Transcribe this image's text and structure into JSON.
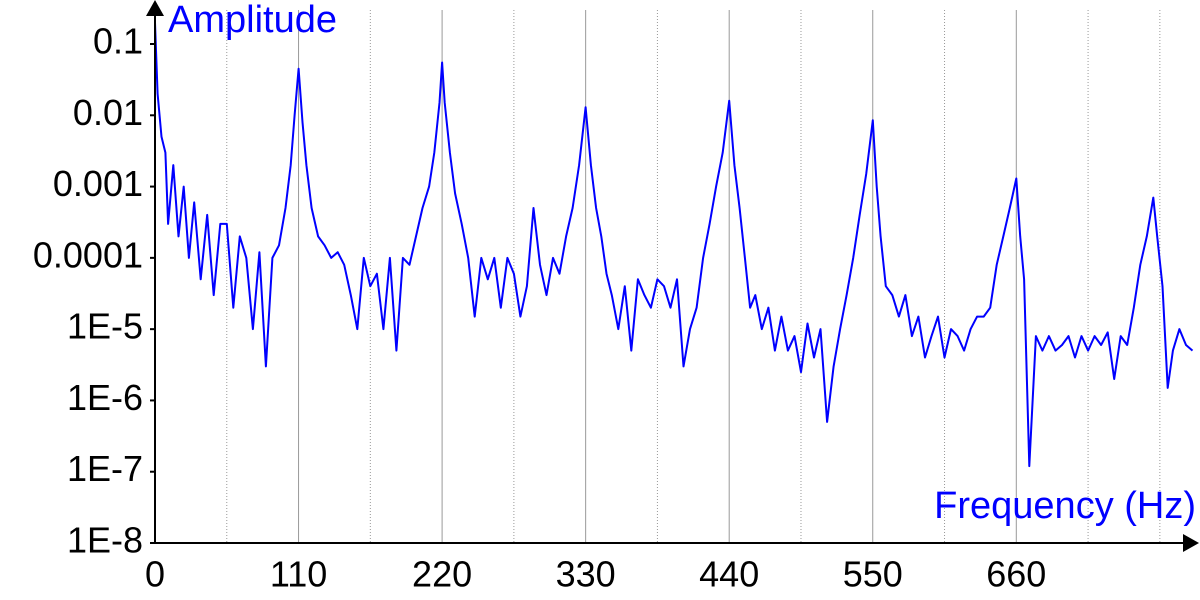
{
  "chart_data": {
    "type": "line",
    "ylabel": "Amplitude",
    "xlabel": "Frequency (Hz)",
    "color": "#0000ff",
    "ylog": true,
    "grid": true,
    "xlim": [
      0,
      800
    ],
    "xticks": [
      0,
      110,
      220,
      330,
      440,
      550,
      660
    ],
    "xminorticks": [
      55,
      165,
      275,
      385,
      495,
      605,
      715,
      770
    ],
    "ylim": [
      1e-08,
      0.3
    ],
    "yticks": [
      {
        "value": 1e-08,
        "label": "1E-8"
      },
      {
        "value": 1e-07,
        "label": "1E-7"
      },
      {
        "value": 1e-06,
        "label": "1E-6"
      },
      {
        "value": 1e-05,
        "label": "1E-5"
      },
      0.0001,
      0.001,
      0.01,
      0.1
    ],
    "x": [
      0,
      2,
      5,
      8,
      10,
      14,
      18,
      22,
      26,
      30,
      35,
      40,
      45,
      50,
      55,
      60,
      65,
      70,
      75,
      80,
      85,
      90,
      95,
      100,
      104,
      107,
      110,
      113,
      116,
      120,
      125,
      130,
      135,
      140,
      145,
      150,
      155,
      160,
      165,
      170,
      175,
      180,
      185,
      190,
      195,
      200,
      205,
      210,
      214,
      218,
      220,
      222,
      226,
      230,
      235,
      240,
      245,
      250,
      255,
      260,
      265,
      270,
      275,
      280,
      285,
      290,
      295,
      300,
      305,
      310,
      315,
      320,
      325,
      330,
      334,
      338,
      342,
      346,
      350,
      355,
      360,
      365,
      370,
      375,
      380,
      385,
      390,
      395,
      400,
      405,
      410,
      415,
      420,
      425,
      430,
      435,
      440,
      444,
      448,
      452,
      456,
      460,
      465,
      470,
      475,
      480,
      485,
      490,
      495,
      500,
      505,
      510,
      515,
      520,
      525,
      530,
      535,
      540,
      545,
      550,
      553,
      556,
      560,
      565,
      570,
      575,
      580,
      585,
      590,
      595,
      600,
      605,
      610,
      615,
      620,
      625,
      630,
      635,
      640,
      645,
      650,
      655,
      660,
      663,
      666,
      670,
      675,
      680,
      685,
      690,
      695,
      700,
      705,
      710,
      715,
      720,
      725,
      730,
      735,
      740,
      745,
      750,
      755,
      760,
      765,
      768,
      772,
      776,
      780,
      785,
      790,
      795
    ],
    "values": [
      0.2,
      0.02,
      0.005,
      0.003,
      0.0003,
      0.002,
      0.0002,
      0.001,
      0.0001,
      0.0006,
      5e-05,
      0.0004,
      3e-05,
      0.0003,
      0.0003,
      2e-05,
      0.0002,
      0.0001,
      1e-05,
      0.00012,
      3e-06,
      0.0001,
      0.00015,
      0.0005,
      0.002,
      0.01,
      0.045,
      0.008,
      0.002,
      0.0005,
      0.0002,
      0.00015,
      0.0001,
      0.00012,
      8e-05,
      3e-05,
      1e-05,
      0.0001,
      4e-05,
      6e-05,
      1e-05,
      0.0001,
      5e-06,
      0.0001,
      8e-05,
      0.0002,
      0.0005,
      0.001,
      0.003,
      0.015,
      0.055,
      0.015,
      0.003,
      0.0008,
      0.0003,
      0.0001,
      1.5e-05,
      0.0001,
      5e-05,
      0.0001,
      2e-05,
      0.0001,
      6e-05,
      1.5e-05,
      4e-05,
      0.0005,
      8e-05,
      3e-05,
      0.0001,
      6e-05,
      0.0002,
      0.0005,
      0.002,
      0.013,
      0.002,
      0.0005,
      0.0002,
      6e-05,
      3e-05,
      1e-05,
      4e-05,
      5e-06,
      5e-05,
      3e-05,
      2e-05,
      5e-05,
      4e-05,
      2e-05,
      5e-05,
      3e-06,
      1e-05,
      2e-05,
      0.0001,
      0.0003,
      0.001,
      0.003,
      0.016,
      0.002,
      0.0005,
      0.0001,
      2e-05,
      3e-05,
      1e-05,
      2e-05,
      5e-06,
      1.5e-05,
      5e-06,
      8e-06,
      2.5e-06,
      1.2e-05,
      4e-06,
      1e-05,
      5e-07,
      3e-06,
      1e-05,
      3e-05,
      0.0001,
      0.0004,
      0.0015,
      0.0085,
      0.001,
      0.0002,
      4e-05,
      3e-05,
      1.5e-05,
      3e-05,
      8e-06,
      1.5e-05,
      4e-06,
      8e-06,
      1.5e-05,
      4e-06,
      1e-05,
      8e-06,
      5e-06,
      1e-05,
      1.5e-05,
      1.5e-05,
      2e-05,
      8e-05,
      0.0002,
      0.0005,
      0.0013,
      0.0002,
      5e-05,
      1.2e-07,
      8e-06,
      5e-06,
      8e-06,
      5e-06,
      6e-06,
      8e-06,
      4e-06,
      8e-06,
      5e-06,
      8e-06,
      6e-06,
      9e-06,
      2e-06,
      8e-06,
      6e-06,
      2e-05,
      8e-05,
      0.0002,
      0.0007,
      0.0002,
      4e-05,
      1.5e-06,
      5e-06,
      1e-05,
      6e-06,
      5e-06
    ]
  }
}
